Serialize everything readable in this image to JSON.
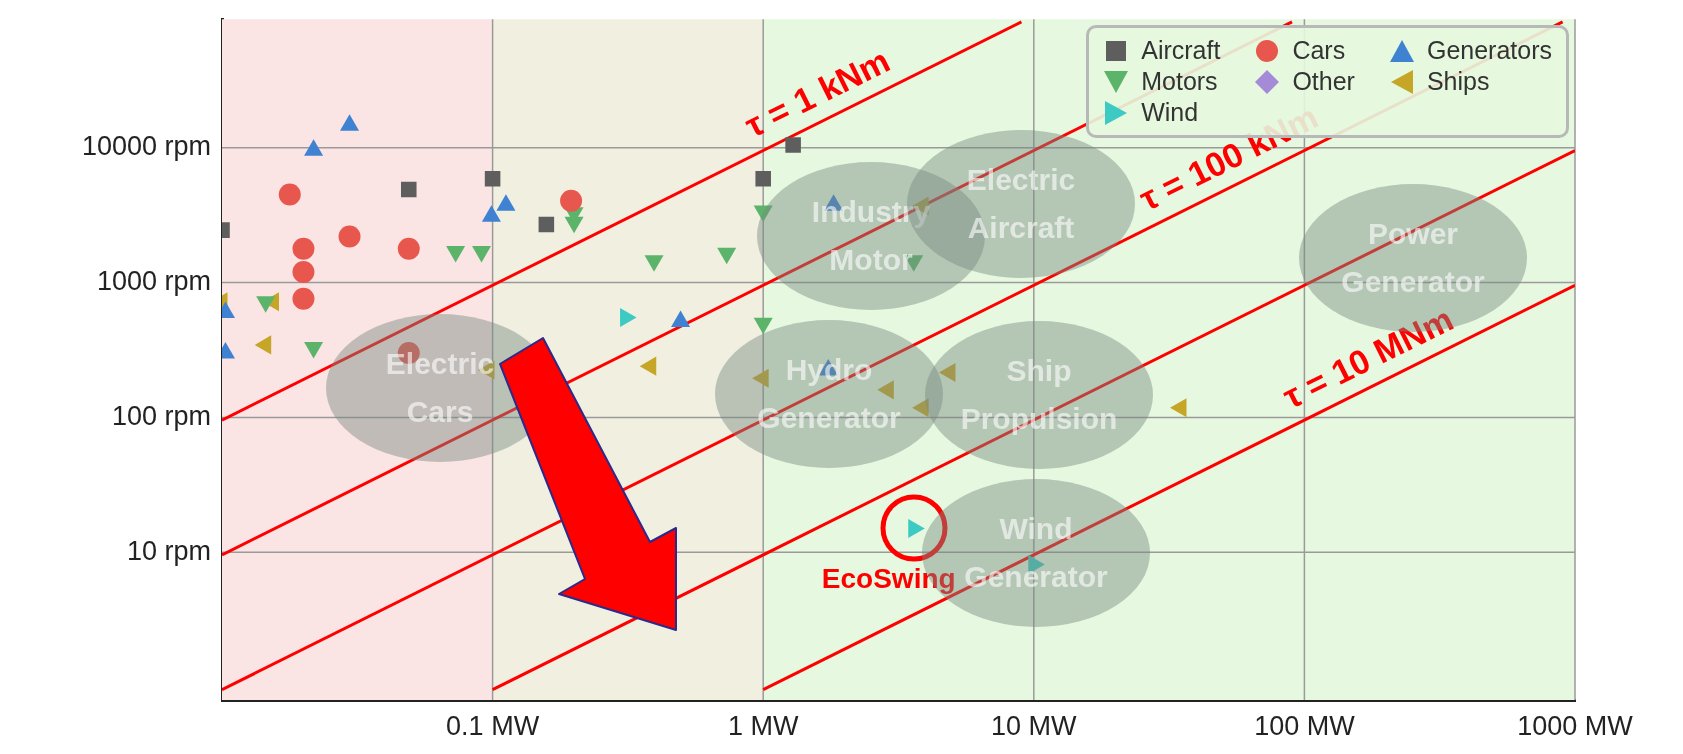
{
  "chart_data": {
    "type": "scatter",
    "xlim": [
      0.01,
      1000
    ],
    "ylim": [
      0.8,
      90000
    ],
    "log": "xy",
    "grid": true,
    "legend": "top right",
    "xticks": [
      {
        "value": 0.1,
        "label": "0.1 MW"
      },
      {
        "value": 1,
        "label": "1 MW"
      },
      {
        "value": 10,
        "label": "10 MW"
      },
      {
        "value": 100,
        "label": "100 MW"
      },
      {
        "value": 1000,
        "label": "1000 MW"
      }
    ],
    "yticks": [
      {
        "value": 10,
        "label": "10 rpm"
      },
      {
        "value": 100,
        "label": "100 rpm"
      },
      {
        "value": 1000,
        "label": "1000 rpm"
      },
      {
        "value": 10000,
        "label": "10000 rpm"
      }
    ],
    "bands": [
      {
        "axis": "x",
        "from": 0.01,
        "to": 0.1,
        "color": "#fbe4e4"
      },
      {
        "axis": "x",
        "from": 0.1,
        "to": 1,
        "color": "#f1efe0"
      },
      {
        "axis": "x",
        "from": 1,
        "to": 1000,
        "color": "#e6f8df"
      }
    ],
    "series": [
      {
        "name": "Aircraft",
        "color": "#5e5e5e",
        "marker": "square",
        "x": [
          0.01,
          0.049,
          0.1,
          0.158,
          1.0,
          1.29
        ],
        "values": [
          2450,
          4900,
          5900,
          2700,
          5900,
          10500
        ]
      },
      {
        "name": "Cars",
        "color": "#e8574e",
        "marker": "circle",
        "x": [
          0.0178,
          0.02,
          0.02,
          0.02,
          0.0296,
          0.049,
          0.049,
          0.195
        ],
        "values": [
          4500,
          1780,
          1200,
          760,
          2200,
          1780,
          300,
          4050
        ]
      },
      {
        "name": "Generators",
        "color": "#3f82d2",
        "marker": "triangle",
        "x": [
          0.0103,
          0.0103,
          0.0218,
          0.0296,
          0.099,
          0.112,
          0.495,
          1.82,
          1.74
        ],
        "values": [
          600,
          300,
          9600,
          14700,
          3100,
          3750,
          515,
          3750,
          225
        ]
      },
      {
        "name": "Motors",
        "color": "#5cb46b",
        "marker": "triangle-down",
        "x": [
          0.0145,
          0.0218,
          0.073,
          0.091,
          0.2,
          0.2,
          0.395,
          0.733,
          1.0,
          1.0,
          3.6
        ],
        "values": [
          720,
          330,
          1700,
          1700,
          2800,
          3300,
          1450,
          1650,
          500,
          3400,
          1450
        ]
      },
      {
        "name": "Other",
        "color": "#a58ad8",
        "marker": "diamond"
      },
      {
        "name": "Ships",
        "color": "#c6a626",
        "marker": "triangle-left",
        "x": [
          0.01,
          0.0155,
          0.0145,
          0.097,
          0.384,
          1.0,
          2.9,
          3.9,
          4.9,
          3.9,
          35
        ],
        "values": [
          720,
          720,
          345,
          225,
          240,
          195,
          160,
          118,
          215,
          3700,
          118
        ]
      },
      {
        "name": "Wind",
        "color": "#3ccac2",
        "marker": "triangle-right",
        "x": [
          0.31,
          3.6,
          10
        ],
        "values": [
          550,
          15,
          8.1
        ]
      },
      {
        "name": "τ = 1 kNm",
        "type": "line",
        "color": "#ff0000",
        "x": [
          0.01,
          9
        ],
        "values": [
          95.5,
          85900
        ]
      },
      {
        "type": "line",
        "color": "#ff0000",
        "x": [
          0.01,
          90
        ],
        "values": [
          9.55,
          85900
        ]
      },
      {
        "name": "τ = 100 kNm",
        "type": "line",
        "color": "#ff0000",
        "x": [
          0.01,
          900
        ],
        "values": [
          0.955,
          85900
        ]
      },
      {
        "type": "line",
        "color": "#ff0000",
        "x": [
          0.1,
          1000
        ],
        "values": [
          0.955,
          9549
        ]
      },
      {
        "name": "τ = 10 MNm",
        "type": "line",
        "color": "#ff0000",
        "x": [
          1,
          1000
        ],
        "values": [
          0.955,
          955
        ]
      }
    ],
    "annotations": [
      "Electric Cars",
      "Industry Motor",
      "Electric Aircraft",
      "Hydro Generator",
      "Ship Propulsion",
      "Wind Generator",
      "Power Generator",
      {
        "text": "EcoSwing",
        "x": 3.6,
        "y": 15
      }
    ]
  }
}
